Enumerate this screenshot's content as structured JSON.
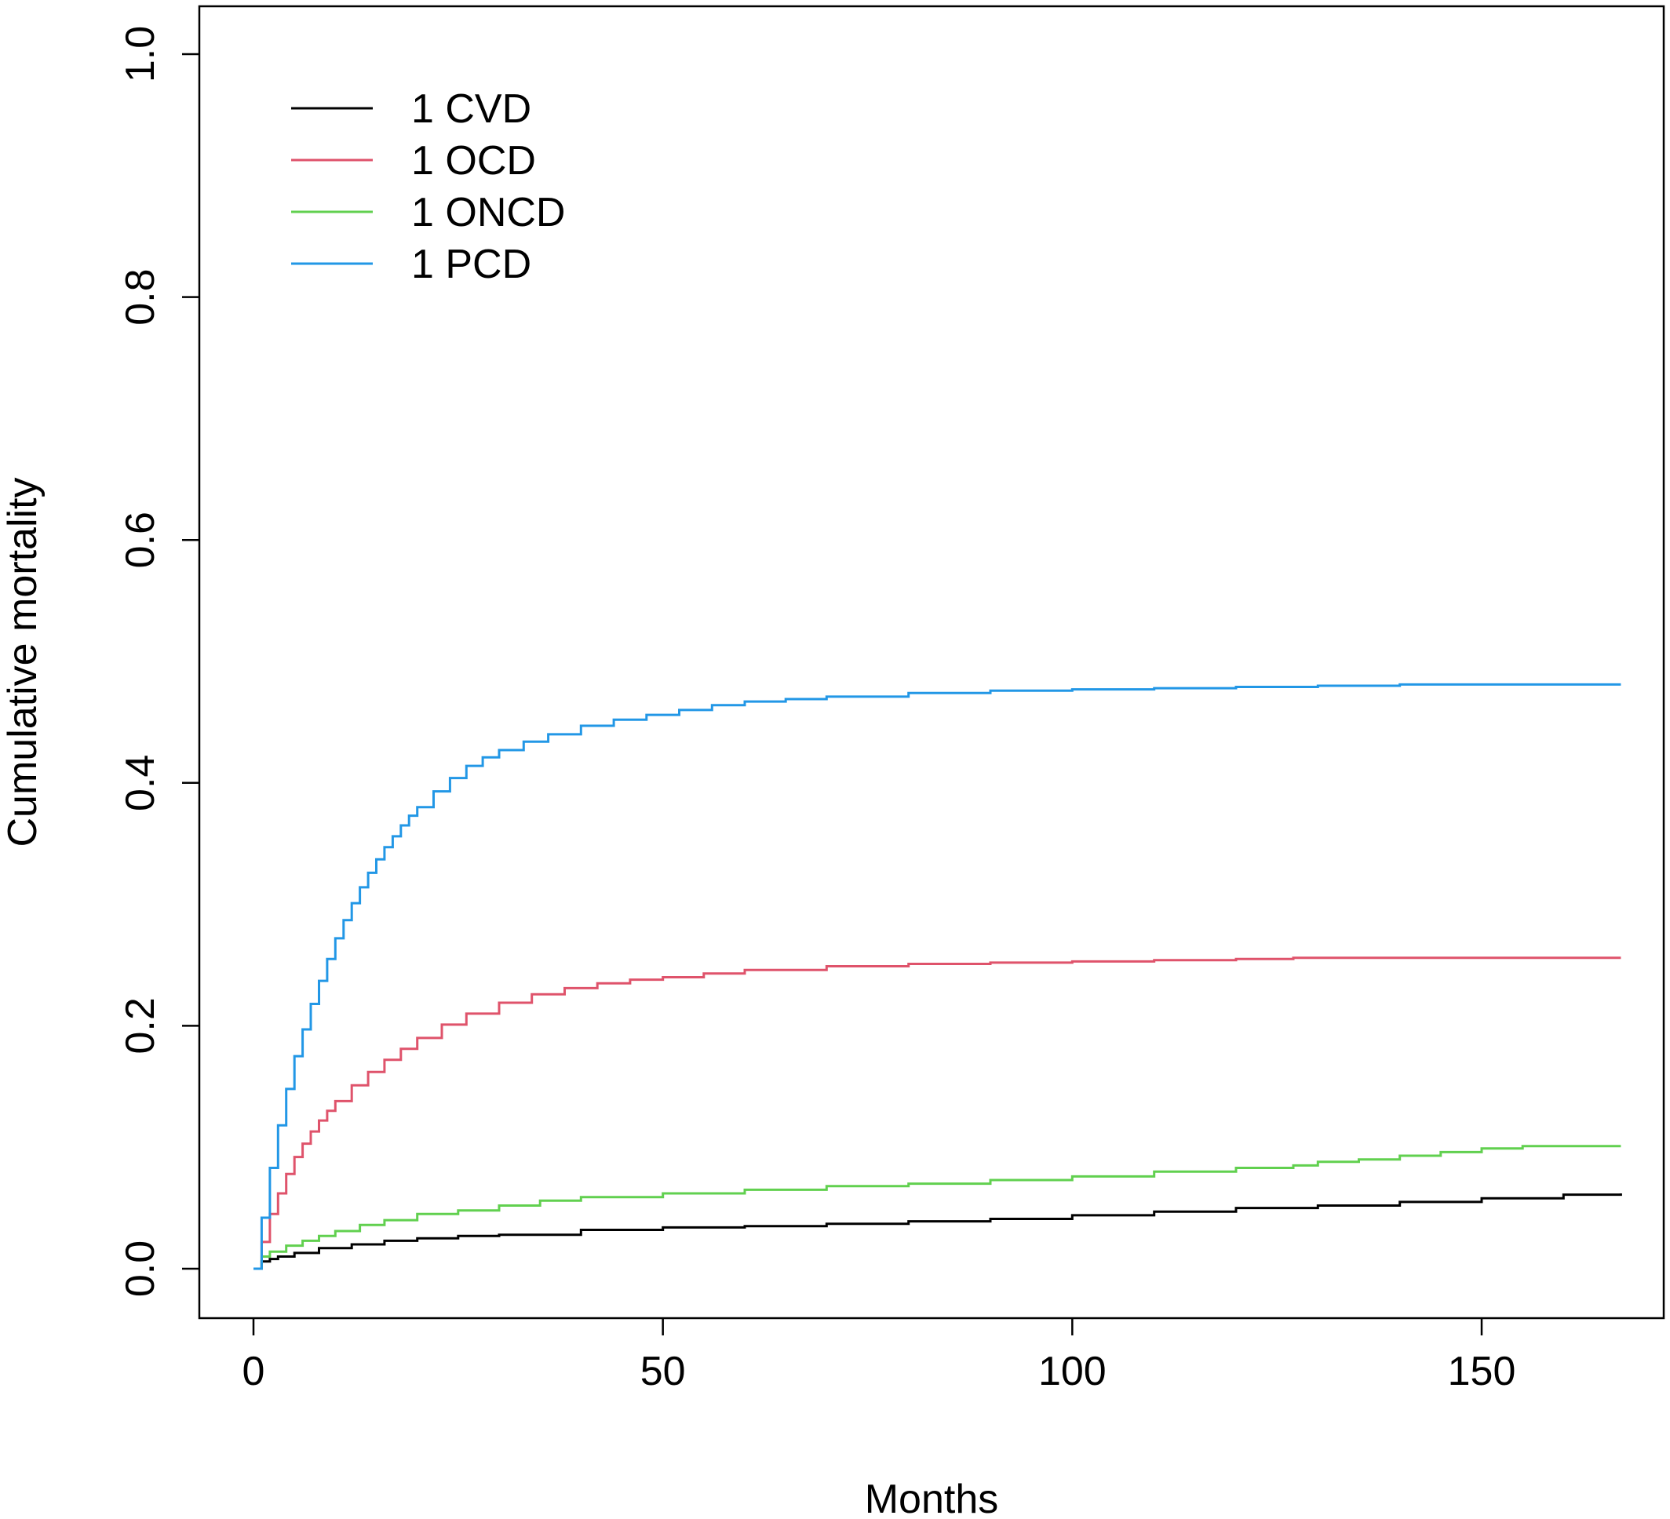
{
  "chart_data": {
    "type": "line",
    "step": true,
    "title": "",
    "xlabel": "Months",
    "ylabel": "Cumulative mortality",
    "xlim": [
      0,
      167
    ],
    "ylim": [
      0,
      1.0
    ],
    "x_ticks": [
      0,
      50,
      100,
      150
    ],
    "x_tick_labels": [
      "0",
      "50",
      "100",
      "150"
    ],
    "y_ticks": [
      0,
      0.2,
      0.4,
      0.6,
      0.8,
      1.0
    ],
    "y_tick_labels": [
      "0.0",
      "0.2",
      "0.4",
      "0.6",
      "0.8",
      "1.0"
    ],
    "grid": false,
    "legend_position": "top-left",
    "series": [
      {
        "name": "1 CVD",
        "color": "#000000",
        "x": [
          0,
          1,
          2,
          3,
          5,
          8,
          12,
          16,
          20,
          25,
          30,
          40,
          50,
          60,
          70,
          80,
          90,
          100,
          110,
          120,
          130,
          140,
          150,
          160,
          167
        ],
        "y": [
          0.0,
          0.006,
          0.008,
          0.01,
          0.013,
          0.017,
          0.02,
          0.023,
          0.025,
          0.027,
          0.028,
          0.032,
          0.034,
          0.035,
          0.037,
          0.039,
          0.041,
          0.044,
          0.047,
          0.05,
          0.052,
          0.055,
          0.058,
          0.061,
          0.062
        ]
      },
      {
        "name": "1 OCD",
        "color": "#df536b",
        "x": [
          0,
          1,
          2,
          3,
          4,
          5,
          6,
          7,
          8,
          9,
          10,
          12,
          14,
          16,
          18,
          20,
          23,
          26,
          30,
          34,
          38,
          42,
          46,
          50,
          55,
          60,
          70,
          80,
          90,
          100,
          110,
          120,
          127,
          130,
          140,
          150,
          160,
          167
        ],
        "y": [
          0.0,
          0.022,
          0.045,
          0.062,
          0.078,
          0.092,
          0.103,
          0.113,
          0.122,
          0.13,
          0.138,
          0.151,
          0.162,
          0.172,
          0.181,
          0.19,
          0.201,
          0.21,
          0.219,
          0.226,
          0.231,
          0.235,
          0.238,
          0.24,
          0.243,
          0.246,
          0.249,
          0.251,
          0.252,
          0.253,
          0.254,
          0.255,
          0.256,
          0.256,
          0.256,
          0.256,
          0.256,
          0.256
        ]
      },
      {
        "name": "1 ONCD",
        "color": "#61d04f",
        "x": [
          0,
          1,
          2,
          4,
          6,
          8,
          10,
          13,
          16,
          20,
          25,
          30,
          35,
          40,
          50,
          60,
          70,
          80,
          90,
          100,
          110,
          120,
          127,
          130,
          135,
          140,
          145,
          150,
          155,
          160,
          167
        ],
        "y": [
          0.0,
          0.01,
          0.014,
          0.019,
          0.023,
          0.027,
          0.031,
          0.036,
          0.04,
          0.045,
          0.048,
          0.052,
          0.056,
          0.059,
          0.062,
          0.065,
          0.068,
          0.07,
          0.073,
          0.076,
          0.08,
          0.083,
          0.085,
          0.088,
          0.09,
          0.093,
          0.096,
          0.099,
          0.101,
          0.101,
          0.101
        ]
      },
      {
        "name": "1 PCD",
        "color": "#2297e6",
        "x": [
          0,
          1,
          2,
          3,
          4,
          5,
          6,
          7,
          8,
          9,
          10,
          11,
          12,
          13,
          14,
          15,
          16,
          17,
          18,
          19,
          20,
          22,
          24,
          26,
          28,
          30,
          33,
          36,
          40,
          44,
          48,
          52,
          56,
          60,
          65,
          70,
          80,
          90,
          100,
          110,
          120,
          130,
          140,
          150,
          160,
          167
        ],
        "y": [
          0.0,
          0.042,
          0.083,
          0.118,
          0.148,
          0.175,
          0.197,
          0.218,
          0.237,
          0.255,
          0.272,
          0.287,
          0.301,
          0.314,
          0.326,
          0.337,
          0.347,
          0.356,
          0.365,
          0.373,
          0.38,
          0.393,
          0.404,
          0.414,
          0.421,
          0.427,
          0.434,
          0.44,
          0.447,
          0.452,
          0.456,
          0.46,
          0.464,
          0.467,
          0.469,
          0.471,
          0.474,
          0.476,
          0.477,
          0.478,
          0.479,
          0.48,
          0.481,
          0.481,
          0.481,
          0.481
        ]
      }
    ]
  }
}
